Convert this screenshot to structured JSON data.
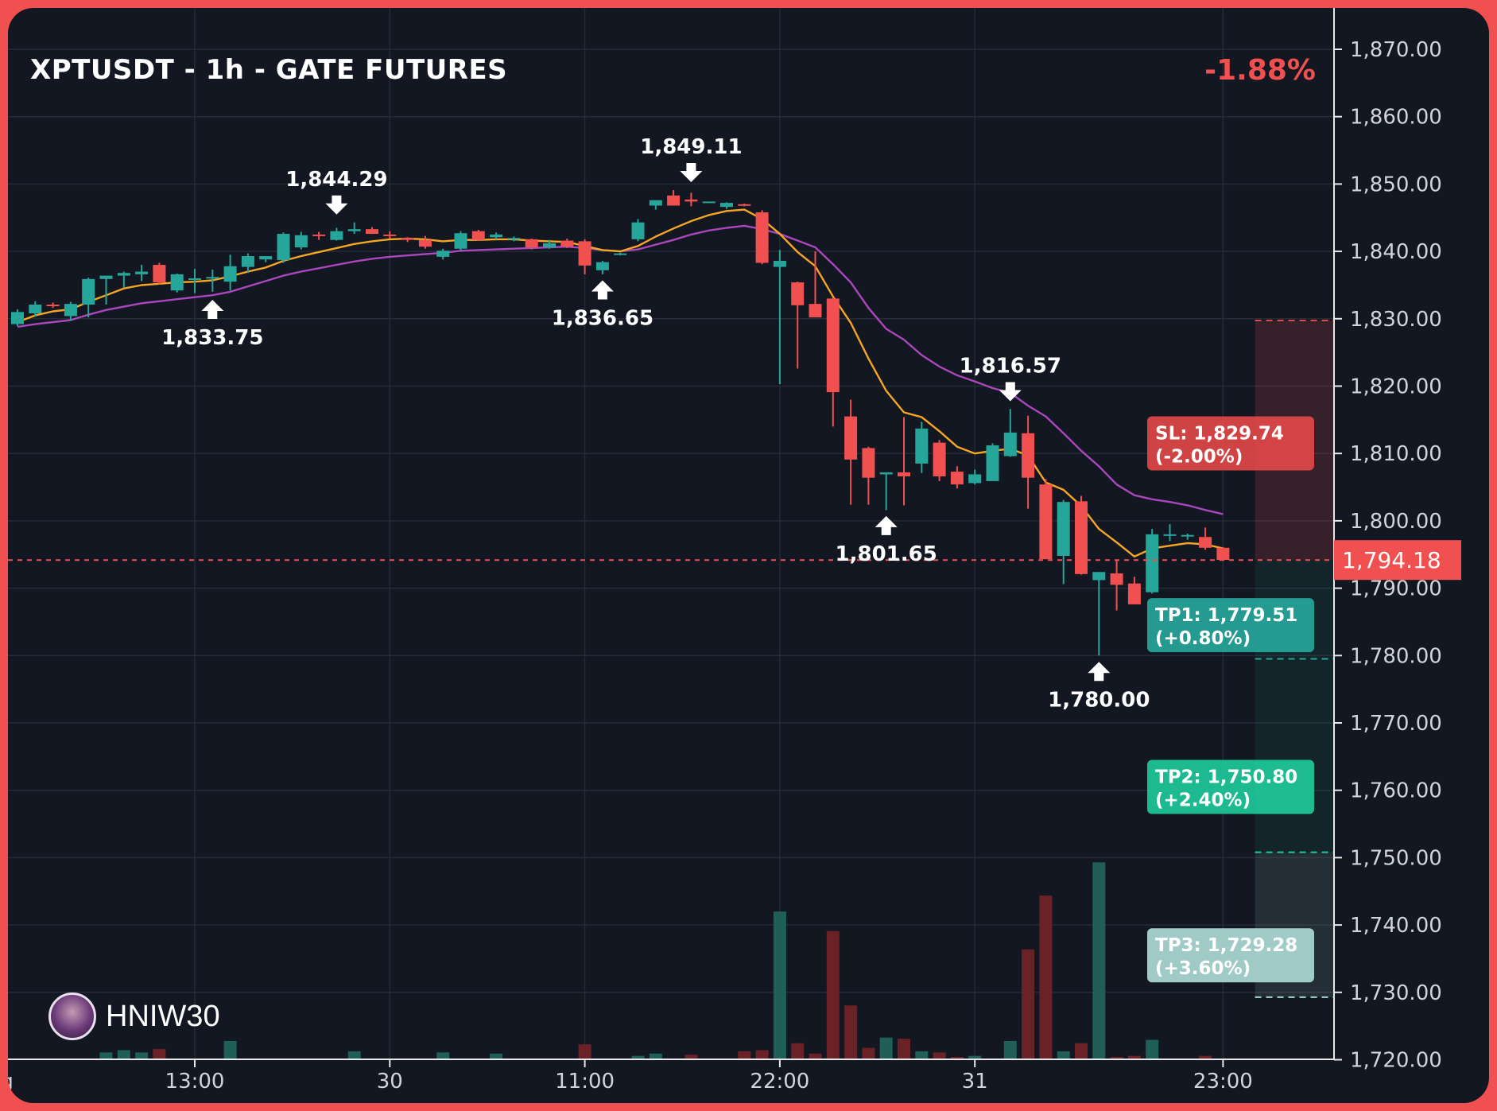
{
  "header": {
    "title": "XPTUSDT - 1h - GATE FUTURES",
    "change": "-1.88%"
  },
  "brand": {
    "name": "HNIW30",
    "avatar_icon": "avatar-icon"
  },
  "colors": {
    "background": "#131722",
    "frame": "#f05050",
    "up": "#26a69a",
    "down": "#f05050",
    "ema_fast": "#f5a623",
    "ema_slow": "#ab47bc",
    "tp1": "#26a69a",
    "tp2": "#1ec99b",
    "tp3": "#a8d4d0",
    "sl": "#e04848"
  },
  "chart_data": {
    "type": "candlestick",
    "interval": "1h",
    "y_axis": {
      "range": [
        1720,
        1872
      ],
      "ticks": [
        "1,870.00",
        "1,860.00",
        "1,850.00",
        "1,840.00",
        "1,830.00",
        "1,820.00",
        "1,810.00",
        "1,800.00",
        "1,790.00",
        "1,780.00",
        "1,770.00",
        "1,760.00",
        "1,750.00",
        "1,740.00",
        "1,730.00",
        "1,720.00"
      ]
    },
    "x_axis": {
      "ticks": [
        {
          "label": "g",
          "index": -0.6
        },
        {
          "label": "13:00",
          "index": 10
        },
        {
          "label": "30",
          "index": 21
        },
        {
          "label": "11:00",
          "index": 32
        },
        {
          "label": "22:00",
          "index": 43
        },
        {
          "label": "31",
          "index": 54
        },
        {
          "label": "23:00",
          "index": 68
        }
      ]
    },
    "candles": [
      {
        "o": 1829.2,
        "h": 1831.4,
        "l": 1828.9,
        "c": 1831.0,
        "v": 0
      },
      {
        "o": 1830.8,
        "h": 1832.6,
        "l": 1830.3,
        "c": 1832.1,
        "v": 0
      },
      {
        "o": 1832.1,
        "h": 1832.4,
        "l": 1831.6,
        "c": 1831.9,
        "v": 0
      },
      {
        "o": 1830.4,
        "h": 1832.5,
        "l": 1829.7,
        "c": 1832.2,
        "v": 0
      },
      {
        "o": 1832.1,
        "h": 1836.1,
        "l": 1830.2,
        "c": 1835.9,
        "v": 0
      },
      {
        "o": 1835.9,
        "h": 1836.3,
        "l": 1832.1,
        "c": 1836.4,
        "v": 0.6
      },
      {
        "o": 1836.4,
        "h": 1837.0,
        "l": 1834.6,
        "c": 1836.8,
        "v": 0.8
      },
      {
        "o": 1836.6,
        "h": 1838.0,
        "l": 1835.6,
        "c": 1837.0,
        "v": 0.6
      },
      {
        "o": 1838.0,
        "h": 1838.3,
        "l": 1835.1,
        "c": 1835.4,
        "v": 0.9
      },
      {
        "o": 1834.2,
        "h": 1836.7,
        "l": 1833.9,
        "c": 1836.6,
        "v": 0
      },
      {
        "o": 1836.0,
        "h": 1837.4,
        "l": 1833.8,
        "c": 1836.0,
        "v": 0
      },
      {
        "o": 1836.0,
        "h": 1837.3,
        "l": 1834.0,
        "c": 1836.2,
        "v": 0
      },
      {
        "o": 1835.5,
        "h": 1839.5,
        "l": 1834.2,
        "c": 1837.8,
        "v": 1.6
      },
      {
        "o": 1837.7,
        "h": 1839.7,
        "l": 1836.8,
        "c": 1839.3,
        "v": 0
      },
      {
        "o": 1838.8,
        "h": 1839.2,
        "l": 1838.4,
        "c": 1839.3,
        "v": 0
      },
      {
        "o": 1838.7,
        "h": 1842.8,
        "l": 1838.3,
        "c": 1842.6,
        "v": 0
      },
      {
        "o": 1840.6,
        "h": 1842.9,
        "l": 1840.3,
        "c": 1842.4,
        "v": 0
      },
      {
        "o": 1842.5,
        "h": 1842.9,
        "l": 1841.7,
        "c": 1842.3,
        "v": 0
      },
      {
        "o": 1841.7,
        "h": 1843.5,
        "l": 1841.6,
        "c": 1843.0,
        "v": 0
      },
      {
        "o": 1843.0,
        "h": 1844.3,
        "l": 1842.6,
        "c": 1843.3,
        "v": 0.7
      },
      {
        "o": 1843.3,
        "h": 1843.6,
        "l": 1842.6,
        "c": 1842.6,
        "v": 0
      },
      {
        "o": 1842.5,
        "h": 1843.0,
        "l": 1841.9,
        "c": 1842.4,
        "v": 0
      },
      {
        "o": 1842.0,
        "h": 1842.1,
        "l": 1841.4,
        "c": 1841.7,
        "v": 0
      },
      {
        "o": 1841.7,
        "h": 1842.3,
        "l": 1840.4,
        "c": 1840.7,
        "v": 0
      },
      {
        "o": 1839.2,
        "h": 1840.4,
        "l": 1838.8,
        "c": 1840.1,
        "v": 0.6
      },
      {
        "o": 1840.4,
        "h": 1843.0,
        "l": 1840.1,
        "c": 1842.7,
        "v": 0
      },
      {
        "o": 1843.0,
        "h": 1843.2,
        "l": 1841.6,
        "c": 1841.7,
        "v": 0
      },
      {
        "o": 1842.1,
        "h": 1842.8,
        "l": 1841.8,
        "c": 1842.5,
        "v": 0.5
      },
      {
        "o": 1841.8,
        "h": 1842.2,
        "l": 1841.5,
        "c": 1842.0,
        "v": 0
      },
      {
        "o": 1841.8,
        "h": 1841.9,
        "l": 1840.3,
        "c": 1840.6,
        "v": 0
      },
      {
        "o": 1840.6,
        "h": 1841.7,
        "l": 1840.4,
        "c": 1841.2,
        "v": 0
      },
      {
        "o": 1841.6,
        "h": 1841.9,
        "l": 1840.5,
        "c": 1840.7,
        "v": 0
      },
      {
        "o": 1841.5,
        "h": 1841.8,
        "l": 1836.6,
        "c": 1837.9,
        "v": 1.3
      },
      {
        "o": 1837.2,
        "h": 1838.6,
        "l": 1836.6,
        "c": 1838.4,
        "v": 0
      },
      {
        "o": 1839.5,
        "h": 1839.8,
        "l": 1839.4,
        "c": 1839.7,
        "v": 0
      },
      {
        "o": 1841.8,
        "h": 1844.8,
        "l": 1841.5,
        "c": 1844.3,
        "v": 0.3
      },
      {
        "o": 1846.8,
        "h": 1847.6,
        "l": 1846.2,
        "c": 1847.6,
        "v": 0.5
      },
      {
        "o": 1848.3,
        "h": 1849.1,
        "l": 1846.8,
        "c": 1846.8,
        "v": 0
      },
      {
        "o": 1847.7,
        "h": 1848.7,
        "l": 1846.7,
        "c": 1847.4,
        "v": 0.4
      },
      {
        "o": 1847.4,
        "h": 1847.4,
        "l": 1847.3,
        "c": 1847.4,
        "v": 0
      },
      {
        "o": 1846.6,
        "h": 1847.3,
        "l": 1846.3,
        "c": 1847.2,
        "v": 0
      },
      {
        "o": 1847.0,
        "h": 1847.1,
        "l": 1846.7,
        "c": 1846.9,
        "v": 0.7
      },
      {
        "o": 1845.8,
        "h": 1846.1,
        "l": 1838.1,
        "c": 1838.3,
        "v": 0.8
      },
      {
        "o": 1837.7,
        "h": 1840.2,
        "l": 1820.3,
        "c": 1838.6,
        "v": 12.9
      },
      {
        "o": 1835.4,
        "h": 1835.5,
        "l": 1822.6,
        "c": 1832.0,
        "v": 1.4
      },
      {
        "o": 1832.2,
        "h": 1840.0,
        "l": 1830.2,
        "c": 1830.2,
        "v": 0.5
      },
      {
        "o": 1833.0,
        "h": 1833.2,
        "l": 1814.0,
        "c": 1819.1,
        "v": 11.2
      },
      {
        "o": 1815.5,
        "h": 1818.0,
        "l": 1802.4,
        "c": 1809.1,
        "v": 4.7
      },
      {
        "o": 1810.8,
        "h": 1811.0,
        "l": 1802.4,
        "c": 1806.4,
        "v": 1.0
      },
      {
        "o": 1806.9,
        "h": 1806.9,
        "l": 1801.6,
        "c": 1807.2,
        "v": 1.9
      },
      {
        "o": 1807.2,
        "h": 1815.4,
        "l": 1802.3,
        "c": 1806.6,
        "v": 1.8
      },
      {
        "o": 1808.5,
        "h": 1814.7,
        "l": 1807.1,
        "c": 1813.7,
        "v": 0.7
      },
      {
        "o": 1811.6,
        "h": 1812.0,
        "l": 1805.9,
        "c": 1806.6,
        "v": 0.6
      },
      {
        "o": 1807.3,
        "h": 1808.1,
        "l": 1804.8,
        "c": 1805.4,
        "v": 0.2
      },
      {
        "o": 1805.6,
        "h": 1807.6,
        "l": 1805.4,
        "c": 1806.9,
        "v": 0.3
      },
      {
        "o": 1805.9,
        "h": 1811.5,
        "l": 1806.0,
        "c": 1811.2,
        "v": 0
      },
      {
        "o": 1809.6,
        "h": 1816.6,
        "l": 1809.5,
        "c": 1813.1,
        "v": 1.6
      },
      {
        "o": 1813.0,
        "h": 1815.6,
        "l": 1801.8,
        "c": 1806.4,
        "v": 9.6
      },
      {
        "o": 1805.4,
        "h": 1806.2,
        "l": 1794.3,
        "c": 1794.3,
        "v": 14.3
      },
      {
        "o": 1794.8,
        "h": 1803.1,
        "l": 1790.6,
        "c": 1802.8,
        "v": 0.7
      },
      {
        "o": 1802.9,
        "h": 1803.7,
        "l": 1792.0,
        "c": 1792.1,
        "v": 1.4
      },
      {
        "o": 1791.2,
        "h": 1792.4,
        "l": 1780.0,
        "c": 1792.4,
        "v": 17.2
      },
      {
        "o": 1792.2,
        "h": 1794.1,
        "l": 1786.7,
        "c": 1790.5,
        "v": 0.2
      },
      {
        "o": 1790.7,
        "h": 1791.7,
        "l": 1787.6,
        "c": 1787.6,
        "v": 0.3
      },
      {
        "o": 1789.4,
        "h": 1798.8,
        "l": 1789.2,
        "c": 1798.0,
        "v": 1.7
      },
      {
        "o": 1798.0,
        "h": 1799.5,
        "l": 1797.0,
        "c": 1798.0,
        "v": 0
      },
      {
        "o": 1797.9,
        "h": 1798.1,
        "l": 1797.2,
        "c": 1797.9,
        "v": 0
      },
      {
        "o": 1797.6,
        "h": 1799.0,
        "l": 1795.7,
        "c": 1796.0,
        "v": 0.3
      },
      {
        "o": 1796.0,
        "h": 1796.1,
        "l": 1794.2,
        "c": 1794.2,
        "v": 0
      }
    ],
    "ema_fast": [
      1829.5,
      1830.5,
      1831.1,
      1831.4,
      1832.5,
      1833.5,
      1834.5,
      1835.0,
      1835.2,
      1835.4,
      1835.5,
      1835.7,
      1836.3,
      1837.0,
      1837.6,
      1838.6,
      1839.3,
      1839.9,
      1840.5,
      1841.1,
      1841.5,
      1841.8,
      1841.9,
      1841.8,
      1841.5,
      1841.7,
      1841.7,
      1841.8,
      1841.8,
      1841.6,
      1841.5,
      1841.4,
      1840.8,
      1840.2,
      1840.0,
      1840.8,
      1842.2,
      1843.4,
      1844.5,
      1845.4,
      1846.0,
      1846.2,
      1844.8,
      1842.6,
      1839.9,
      1837.8,
      1833.3,
      1829.4,
      1824.1,
      1819.3,
      1816.1,
      1815.4,
      1813.3,
      1811.0,
      1810.0,
      1810.4,
      1810.7,
      1809.7,
      1805.7,
      1804.6,
      1802.2,
      1798.8,
      1796.8,
      1794.7,
      1795.9,
      1796.3,
      1796.7,
      1796.5,
      1795.9
    ],
    "ema_slow": [
      1828.8,
      1829.2,
      1829.5,
      1829.8,
      1830.6,
      1831.3,
      1831.8,
      1832.3,
      1832.6,
      1832.9,
      1833.2,
      1833.5,
      1834.0,
      1834.8,
      1835.6,
      1836.4,
      1837.0,
      1837.5,
      1838.0,
      1838.5,
      1838.9,
      1839.2,
      1839.4,
      1839.6,
      1839.8,
      1840.1,
      1840.2,
      1840.3,
      1840.4,
      1840.5,
      1840.6,
      1840.7,
      1840.5,
      1840.2,
      1840.0,
      1840.3,
      1841.0,
      1841.7,
      1842.5,
      1843.1,
      1843.5,
      1843.8,
      1843.3,
      1842.6,
      1841.6,
      1840.6,
      1838.1,
      1835.4,
      1831.6,
      1828.5,
      1826.9,
      1824.6,
      1822.9,
      1821.6,
      1820.7,
      1819.7,
      1819.0,
      1817.1,
      1815.5,
      1813.0,
      1810.4,
      1808.1,
      1805.4,
      1803.8,
      1803.2,
      1802.8,
      1802.3,
      1801.6,
      1801.0
    ],
    "annotations": [
      {
        "label": "1,833.75",
        "index": 11,
        "price": 1833.75,
        "direction": "up"
      },
      {
        "label": "1,844.29",
        "index": 18,
        "price": 1844.29,
        "direction": "down"
      },
      {
        "label": "1,849.11",
        "index": 38,
        "price": 1849.11,
        "direction": "down"
      },
      {
        "label": "1,836.65",
        "index": 33,
        "price": 1836.65,
        "direction": "up"
      },
      {
        "label": "1,816.57",
        "index": 56,
        "price": 1816.57,
        "direction": "down"
      },
      {
        "label": "1,801.65",
        "index": 49,
        "price": 1801.65,
        "direction": "up"
      },
      {
        "label": "1,780.00",
        "index": 61,
        "price": 1780.0,
        "direction": "up"
      }
    ],
    "current_price": {
      "value": 1794.18,
      "label": "1,794.18"
    },
    "levels": [
      {
        "name": "SL",
        "value": 1829.74,
        "label": "SL: 1,829.74",
        "pct": "(-2.00%)",
        "color": "#e04848"
      },
      {
        "name": "TP1",
        "value": 1779.51,
        "label": "TP1: 1,779.51",
        "pct": "(+0.80%)",
        "color": "#26a69a"
      },
      {
        "name": "TP2",
        "value": 1750.8,
        "label": "TP2: 1,750.80",
        "pct": "(+2.40%)",
        "color": "#1ec99b"
      },
      {
        "name": "TP3",
        "value": 1729.28,
        "label": "TP3: 1,729.28",
        "pct": "(+3.60%)",
        "color": "#a8d4d0"
      }
    ],
    "grid": true
  }
}
